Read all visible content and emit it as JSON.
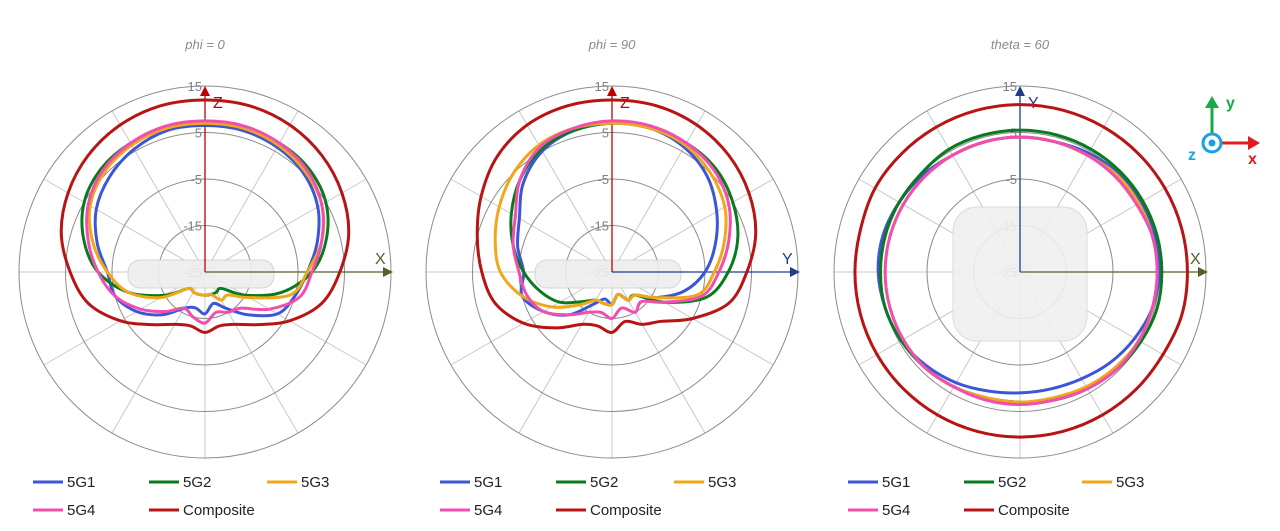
{
  "chart_data": [
    {
      "type": "polar-line",
      "title": "phi = 0",
      "axis_labels": {
        "vertical": "Z",
        "horizontal": "X"
      },
      "vertical_axis_color": "#c00000",
      "horizontal_axis_color": "#4f6228",
      "r_ticks": [
        "15",
        "5",
        "-5",
        "-15",
        "-25"
      ],
      "rlim": [
        -25,
        15
      ],
      "angle_step_deg": 15,
      "series": [
        {
          "name": "5G1",
          "color": "#3b56d6",
          "values": [
            6.5,
            6.5,
            6,
            5,
            3,
            0,
            -3,
            -5,
            -7,
            -12,
            -16,
            -18,
            -16,
            -17,
            -16,
            -12,
            -8,
            -5,
            -4,
            -1,
            2,
            4,
            5.5,
            6.5
          ]
        },
        {
          "name": "5G2",
          "color": "#0a7a1e",
          "values": [
            7,
            7,
            7,
            6.5,
            5,
            2,
            -2,
            -8,
            -15,
            -20,
            -20,
            -20,
            -20,
            -20,
            -20,
            -20,
            -15,
            -8,
            -2,
            2,
            5,
            6.5,
            7,
            7
          ]
        },
        {
          "name": "5G3",
          "color": "#f0a818",
          "values": [
            7,
            7,
            6.5,
            5.5,
            4,
            1,
            -3,
            -6,
            -14,
            -18,
            -18,
            -20,
            -20,
            -20,
            -20,
            -20,
            -14,
            -8,
            -4,
            0,
            3.5,
            5.5,
            6.5,
            7
          ]
        },
        {
          "name": "5G4",
          "color": "#f04fb0",
          "values": [
            7.5,
            7.5,
            7,
            6,
            4,
            1,
            -2,
            -4,
            -9,
            -14,
            -15,
            -16,
            -14,
            -15,
            -16,
            -13,
            -9,
            -5,
            -2,
            1,
            4,
            6,
            7,
            7.5
          ]
        },
        {
          "name": "Composite",
          "color": "#b81414",
          "values": [
            12,
            12,
            11.5,
            10.5,
            9,
            7,
            4,
            1,
            -4,
            -9,
            -12,
            -13,
            -12,
            -13,
            -12,
            -9,
            -4,
            1,
            4,
            7,
            9,
            10.5,
            11.5,
            12
          ]
        }
      ]
    },
    {
      "type": "polar-line",
      "title": "phi = 90",
      "axis_labels": {
        "vertical": "Z",
        "horizontal": "Y"
      },
      "vertical_axis_color": "#c00000",
      "horizontal_axis_color": "#1f3c88",
      "r_ticks": [
        "15",
        "5",
        "-5",
        "-15",
        "-25"
      ],
      "rlim": [
        -25,
        15
      ],
      "angle_step_deg": 15,
      "series": [
        {
          "name": "5G1",
          "color": "#3b56d6",
          "values": [
            7,
            7,
            6,
            4,
            1,
            -2,
            -5,
            -9,
            -14,
            -18,
            -18,
            -20,
            -18,
            -19,
            -17,
            -12,
            -8,
            -5,
            -6,
            -4,
            -2,
            2,
            5,
            6.5
          ]
        },
        {
          "name": "5G2",
          "color": "#0a7a1e",
          "values": [
            7,
            7,
            7,
            6.5,
            5,
            3,
            0,
            -4,
            -12,
            -18,
            -18,
            -20,
            -18,
            -18,
            -18,
            -16,
            -12,
            -9,
            -6,
            -3,
            0,
            3,
            5.5,
            6.5
          ]
        },
        {
          "name": "5G3",
          "color": "#f0a818",
          "values": [
            7,
            7,
            6.5,
            5,
            3,
            0,
            -3,
            -6,
            -14,
            -18,
            -18,
            -20,
            -18,
            -18,
            -18,
            -15,
            -10,
            -5,
            -1,
            1,
            3,
            5,
            6.5,
            7
          ]
        },
        {
          "name": "5G4",
          "color": "#f04fb0",
          "values": [
            7.5,
            7.5,
            7,
            6,
            4,
            1,
            -2,
            -5,
            -12,
            -16,
            -15,
            -17,
            -15,
            -16,
            -15,
            -12,
            -8,
            -6,
            -5,
            -3,
            -1,
            3,
            6,
            7
          ]
        },
        {
          "name": "Composite",
          "color": "#b81414",
          "values": [
            12,
            12,
            11.5,
            10.5,
            9,
            7,
            4,
            1,
            -5,
            -10,
            -12,
            -14,
            -12,
            -13,
            -12,
            -8,
            -3,
            1,
            3,
            5,
            7.5,
            10,
            11.5,
            12
          ]
        }
      ]
    },
    {
      "type": "polar-line",
      "title": "theta = 60",
      "axis_labels": {
        "vertical": "Y",
        "horizontal": "X"
      },
      "vertical_axis_color": "#1f3c88",
      "horizontal_axis_color": "#4f6228",
      "r_ticks": [
        "15",
        "5",
        "-5",
        "-15",
        "-25"
      ],
      "rlim": [
        -25,
        15
      ],
      "angle_step_deg": 15,
      "series": [
        {
          "name": "5G1",
          "color": "#3b56d6",
          "values": [
            4,
            4,
            4.5,
            5,
            5,
            5,
            5,
            4.5,
            3.5,
            2.5,
            1.5,
            1,
            1,
            1.5,
            2.5,
            3.5,
            4.5,
            5,
            5.5,
            5.5,
            5,
            4.5,
            4,
            4
          ]
        },
        {
          "name": "5G2",
          "color": "#0a7a1e",
          "values": [
            5.5,
            5.5,
            5.5,
            5.5,
            5.5,
            5.5,
            5.5,
            5.5,
            5,
            4.5,
            4,
            3.5,
            3,
            3,
            3.5,
            4,
            4.5,
            5,
            5,
            5,
            5,
            5,
            5.5,
            5.5
          ]
        },
        {
          "name": "5G3",
          "color": "#f0a818",
          "values": [
            4,
            4,
            4,
            4.5,
            4.5,
            4.5,
            4.5,
            4.5,
            4.5,
            4,
            3.5,
            3,
            3,
            3,
            3.5,
            4,
            4,
            4,
            4,
            4,
            4,
            4,
            4,
            4
          ]
        },
        {
          "name": "5G4",
          "color": "#f04fb0",
          "values": [
            4,
            4,
            4,
            4,
            4,
            4.5,
            4.5,
            4.5,
            4.5,
            4.5,
            4,
            3.5,
            3.5,
            3.5,
            3.5,
            4,
            4,
            4,
            4,
            4,
            4,
            4,
            4,
            4
          ]
        },
        {
          "name": "Composite",
          "color": "#b81414",
          "values": [
            11,
            11,
            11,
            11,
            11,
            11,
            11,
            11,
            10.5,
            10.5,
            10.5,
            10.5,
            10.5,
            10.5,
            10.5,
            10.5,
            10.5,
            10.5,
            10.5,
            10.5,
            11,
            11,
            11,
            11
          ]
        }
      ]
    }
  ],
  "legend_labels": [
    "5G1",
    "5G2",
    "5G3",
    "5G4",
    "Composite"
  ],
  "coord_icon": {
    "x": "x",
    "y": "y",
    "z": "z"
  }
}
